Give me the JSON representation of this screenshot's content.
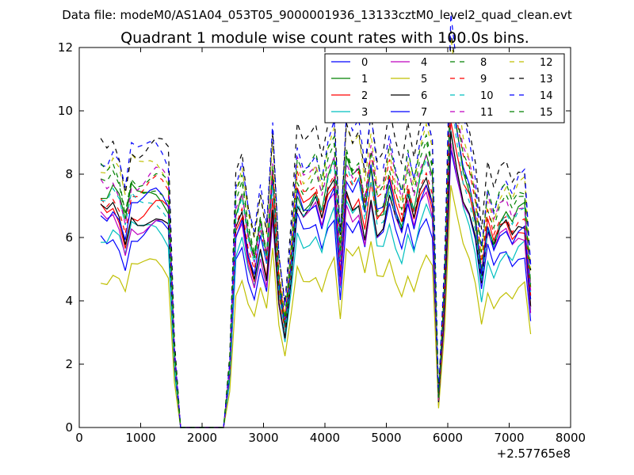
{
  "suptitle": "Data file: modeM0/AS1A04_053T05_9000001936_13133cztM0_level2_quad_clean.evt",
  "chart_data": {
    "type": "line",
    "title": "Quadrant 1 module wise count rates with 100.0s bins.",
    "xlabel": "",
    "ylabel": "",
    "x_offset_label": "+2.57765e8",
    "xlim": [
      0,
      8000
    ],
    "ylim": [
      0,
      12
    ],
    "x_ticks": [
      0,
      1000,
      2000,
      3000,
      4000,
      5000,
      6000,
      7000,
      8000
    ],
    "y_ticks": [
      0,
      2,
      4,
      6,
      8,
      10,
      12
    ],
    "grid": false,
    "legend_position": "top-right",
    "x": [
      350,
      450,
      550,
      650,
      750,
      850,
      950,
      1050,
      1150,
      1250,
      1350,
      1450,
      1550,
      1650,
      2350,
      2450,
      2550,
      2650,
      2750,
      2850,
      2950,
      3050,
      3150,
      3250,
      3350,
      3450,
      3550,
      3650,
      3750,
      3850,
      3950,
      4050,
      4150,
      4250,
      4350,
      4450,
      4550,
      4650,
      4750,
      4850,
      4950,
      5050,
      5150,
      5250,
      5350,
      5450,
      5550,
      5650,
      5750,
      5850,
      5950,
      6050,
      6150,
      6250,
      6350,
      6450,
      6550,
      6650,
      6750,
      6850,
      6950,
      7050,
      7150,
      7250,
      7350
    ],
    "base_pattern": [
      1.0,
      0.98,
      1.02,
      0.97,
      0.86,
      1.01,
      0.99,
      1.0,
      1.02,
      1.03,
      1.01,
      0.97,
      0.3,
      0.0,
      0.0,
      0.25,
      0.9,
      0.98,
      0.8,
      0.7,
      0.86,
      0.72,
      1.08,
      0.62,
      0.44,
      0.72,
      1.05,
      0.98,
      1.0,
      1.04,
      0.94,
      1.07,
      1.13,
      0.7,
      1.12,
      1.05,
      1.09,
      0.93,
      1.13,
      0.94,
      0.96,
      1.1,
      0.98,
      0.9,
      1.05,
      0.94,
      1.07,
      1.14,
      1.04,
      0.12,
      0.6,
      1.46,
      1.28,
      1.12,
      1.05,
      0.92,
      0.68,
      0.91,
      0.82,
      0.9,
      0.93,
      0.87,
      0.92,
      0.93,
      0.58
    ],
    "series": [
      {
        "name": "0",
        "color": "#0000ff",
        "dash": false,
        "base": 6.1
      },
      {
        "name": "1",
        "color": "#008000",
        "dash": false,
        "base": 7.3
      },
      {
        "name": "2",
        "color": "#ff0000",
        "dash": false,
        "base": 6.9
      },
      {
        "name": "3",
        "color": "#00bfbf",
        "dash": false,
        "base": 6.1
      },
      {
        "name": "4",
        "color": "#bf00bf",
        "dash": false,
        "base": 6.5
      },
      {
        "name": "5",
        "color": "#bfbf00",
        "dash": false,
        "base": 4.9
      },
      {
        "name": "6",
        "color": "#000000",
        "dash": false,
        "base": 6.7
      },
      {
        "name": "7",
        "color": "#0000ff",
        "dash": false,
        "base": 7.0
      },
      {
        "name": "8",
        "color": "#008000",
        "dash": true,
        "base": 7.6
      },
      {
        "name": "9",
        "color": "#ff0000",
        "dash": true,
        "base": 7.4
      },
      {
        "name": "10",
        "color": "#00bfbf",
        "dash": true,
        "base": 7.1
      },
      {
        "name": "11",
        "color": "#bf00bf",
        "dash": true,
        "base": 7.8
      },
      {
        "name": "12",
        "color": "#bfbf00",
        "dash": true,
        "base": 8.2
      },
      {
        "name": "13",
        "color": "#000000",
        "dash": true,
        "base": 8.9
      },
      {
        "name": "14",
        "color": "#0000ff",
        "dash": true,
        "base": 8.6
      },
      {
        "name": "15",
        "color": "#008000",
        "dash": true,
        "base": 8.0
      }
    ]
  }
}
